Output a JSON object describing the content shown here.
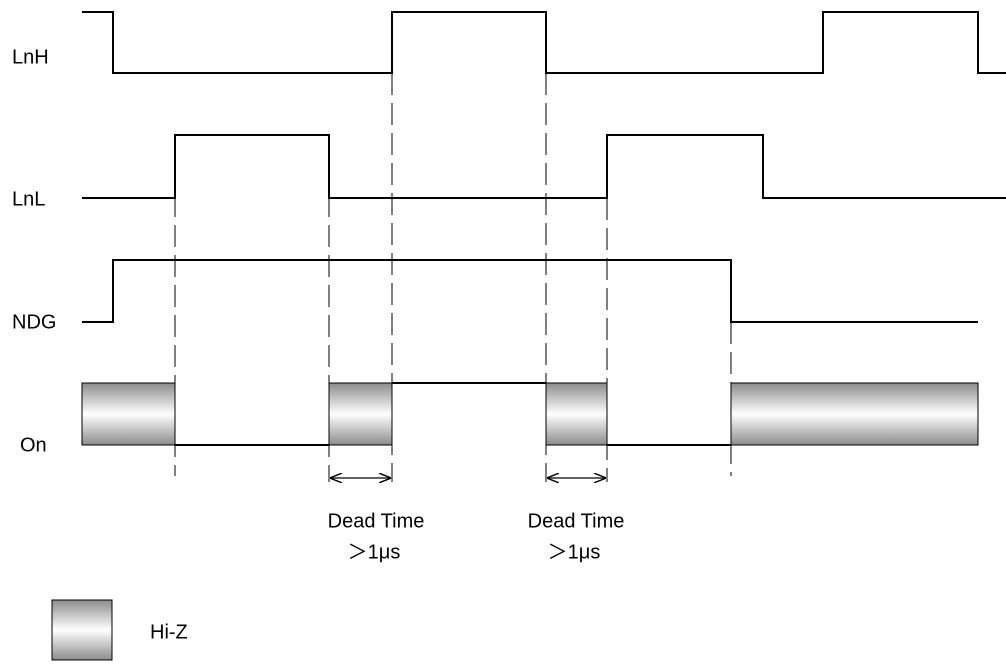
{
  "signals": [
    {
      "label": "LnH"
    },
    {
      "label": "LnL"
    },
    {
      "label": "NDG"
    },
    {
      "label": "On"
    }
  ],
  "annotations": [
    {
      "title": "Dead Time",
      "detail": "＞1μs"
    },
    {
      "title": "Dead Time",
      "detail": "＞1μs"
    }
  ],
  "legend": {
    "label": "Hi-Z"
  }
}
